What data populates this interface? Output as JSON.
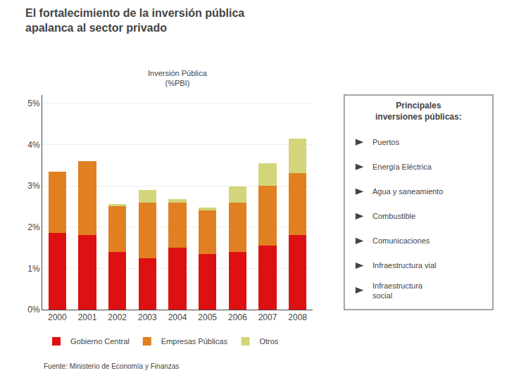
{
  "chart_data": {
    "type": "bar",
    "stacked": true,
    "title": "El fortalecimiento de la inversión pública\napalanca al sector privado",
    "subtitle": "Inversión Pública\n(%PBI)",
    "categories": [
      "2000",
      "2001",
      "2002",
      "2003",
      "2004",
      "2005",
      "2006",
      "2007",
      "2008"
    ],
    "series": [
      {
        "name": "Gobierno Central",
        "color": "#dd1111",
        "values": [
          1.85,
          1.8,
          1.4,
          1.25,
          1.5,
          1.35,
          1.4,
          1.55,
          1.8
        ]
      },
      {
        "name": "Empresas Públicas",
        "color": "#e08020",
        "values": [
          1.5,
          1.8,
          1.1,
          1.35,
          1.1,
          1.05,
          1.2,
          1.45,
          1.5
        ]
      },
      {
        "name": "Otros",
        "color": "#d4d47a",
        "values": [
          0.0,
          0.0,
          0.05,
          0.3,
          0.08,
          0.08,
          0.38,
          0.55,
          0.85
        ]
      }
    ],
    "ylim": [
      0,
      5.2
    ],
    "yticks": [
      {
        "value": 0,
        "label": "0%"
      },
      {
        "value": 1,
        "label": "1%"
      },
      {
        "value": 2,
        "label": "2%"
      },
      {
        "value": 3,
        "label": "3%"
      },
      {
        "value": 4,
        "label": "4%"
      },
      {
        "value": 5,
        "label": "5%"
      }
    ],
    "grid": true,
    "legend": "lower left",
    "source": "Fuente: Ministerio de Economía y Finanzas",
    "annotations": [
      "Principales\ninversiones públicas:",
      "Puertos",
      "Energía Eléctrica",
      "Agua y saneamiento",
      "Combustible",
      "Comunicaciones",
      "Infraestructura vial",
      "Infraestructura\nsocial"
    ]
  }
}
